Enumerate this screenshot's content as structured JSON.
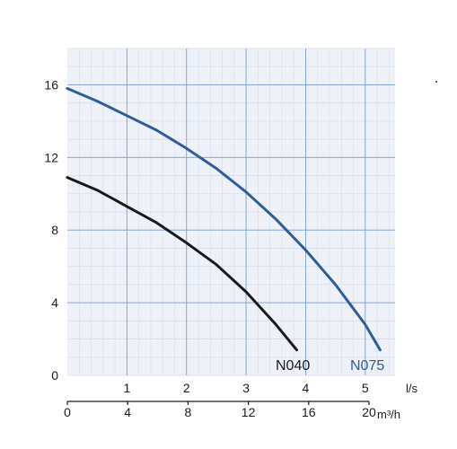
{
  "chart_data": {
    "type": "line",
    "x_unit_primary": "l/s",
    "x_unit_secondary": "m³/h",
    "xlim": [
      0,
      5.5
    ],
    "ylim": [
      0,
      18
    ],
    "x_ticks": [
      "1",
      "2",
      "3",
      "4",
      "5"
    ],
    "y_ticks": [
      "0",
      "4",
      "8",
      "12",
      "16"
    ],
    "x2_ticks": [
      "0",
      "4",
      "8",
      "12",
      "16",
      "20"
    ],
    "grid": true,
    "colors": {
      "plot_bg": "#eef2f8",
      "grid_major": "#7a9fcf",
      "grid_minor": "#d3deee",
      "N040": "#1a1a1a",
      "N075": "#2e5d9a"
    },
    "series": [
      {
        "name": "N040",
        "x": [
          0,
          0.5,
          1.0,
          1.5,
          2.0,
          2.5,
          3.0,
          3.5,
          3.85
        ],
        "y": [
          10.9,
          10.2,
          9.3,
          8.4,
          7.3,
          6.1,
          4.6,
          2.8,
          1.4
        ]
      },
      {
        "name": "N075",
        "x": [
          0,
          0.5,
          1.0,
          1.5,
          2.0,
          2.5,
          3.0,
          3.5,
          4.0,
          4.5,
          5.0,
          5.25
        ],
        "y": [
          15.8,
          15.1,
          14.3,
          13.5,
          12.5,
          11.4,
          10.1,
          8.6,
          6.9,
          5.0,
          2.8,
          1.4
        ]
      }
    ]
  }
}
